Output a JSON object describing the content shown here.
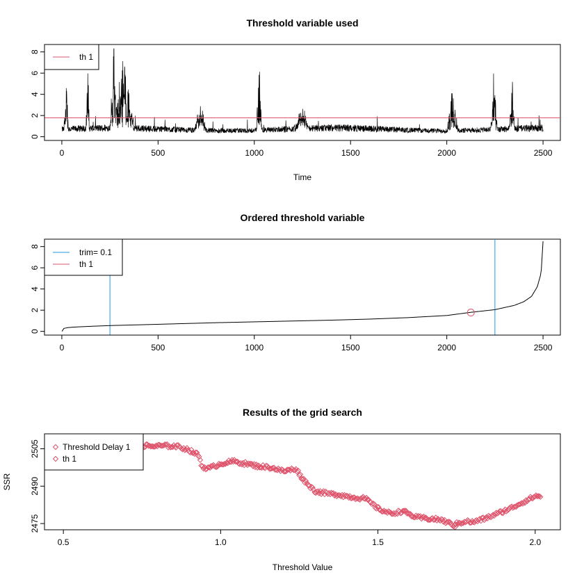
{
  "colors": {
    "black": "#000000",
    "red": "#DF536B",
    "blue": "#2297E6",
    "frame": "#000000"
  },
  "chart_data": [
    {
      "type": "line",
      "title": "Threshold variable used",
      "xlabel": "Time",
      "ylabel": "",
      "xlim": [
        -90,
        2590
      ],
      "ylim": [
        -0.35,
        8.7
      ],
      "xticks": [
        0,
        500,
        1000,
        1500,
        2000,
        2500
      ],
      "yticks": [
        0,
        2,
        4,
        6,
        8
      ],
      "n": 2500,
      "base_level": 1.0,
      "threshold_line": {
        "name": "th 1",
        "y": 1.78
      },
      "bursts": [
        {
          "x": 22,
          "peak": 5.7,
          "width": 12
        },
        {
          "x": 135,
          "peak": 6.4,
          "width": 10
        },
        {
          "x": 270,
          "peak": 8.5,
          "width": 20
        },
        {
          "x": 320,
          "peak": 8.0,
          "width": 55
        },
        {
          "x": 720,
          "peak": 3.1,
          "width": 30
        },
        {
          "x": 1025,
          "peak": 7.4,
          "width": 15
        },
        {
          "x": 1250,
          "peak": 2.6,
          "width": 40
        },
        {
          "x": 2030,
          "peak": 4.6,
          "width": 30
        },
        {
          "x": 2245,
          "peak": 4.7,
          "width": 20
        },
        {
          "x": 2340,
          "peak": 5.1,
          "width": 15
        }
      ],
      "legend": {
        "position": "top-left",
        "entries": [
          {
            "label": "th 1",
            "color": "#DF536B",
            "style": "line"
          }
        ]
      }
    },
    {
      "type": "line",
      "title": "Ordered threshold variable",
      "xlabel": "",
      "ylabel": "",
      "xlim": [
        -90,
        2590
      ],
      "ylim": [
        -0.35,
        8.7
      ],
      "xticks": [
        0,
        500,
        1000,
        1500,
        2000,
        2500
      ],
      "yticks": [
        0,
        2,
        4,
        6,
        8
      ],
      "sorted_curve": {
        "x": [
          1,
          10,
          30,
          60,
          100,
          150,
          250,
          400,
          600,
          800,
          1000,
          1200,
          1400,
          1600,
          1800,
          2000,
          2125,
          2250,
          2350,
          2400,
          2440,
          2470,
          2490,
          2500
        ],
        "y": [
          0.0,
          0.28,
          0.35,
          0.4,
          0.44,
          0.48,
          0.55,
          0.62,
          0.72,
          0.82,
          0.9,
          0.98,
          1.06,
          1.16,
          1.3,
          1.5,
          1.8,
          2.05,
          2.45,
          2.8,
          3.3,
          4.2,
          5.5,
          8.5
        ]
      },
      "trim_lines": {
        "name": "trim= 0.1",
        "x": [
          250,
          2250
        ]
      },
      "threshold_point": {
        "name": "th 1",
        "x": 2125,
        "y": 1.78
      },
      "legend": {
        "position": "top-left",
        "entries": [
          {
            "label": "trim= 0.1",
            "color": "#2297E6",
            "style": "line"
          },
          {
            "label": "th 1",
            "color": "#DF536B",
            "style": "line"
          }
        ]
      }
    },
    {
      "type": "scatter",
      "title": "Results of the grid search",
      "xlabel": "Threshold Value",
      "ylabel": "SSR",
      "xlim": [
        0.44,
        2.08
      ],
      "ylim": [
        2472.5,
        2511
      ],
      "xticks": [
        0.5,
        1.0,
        1.5,
        2.0
      ],
      "xtick_labels": [
        "0.5",
        "1.0",
        "1.5",
        "2.0"
      ],
      "yticks": [
        2475,
        2490,
        2505
      ],
      "ssr_path": {
        "x": [
          0.55,
          0.62,
          0.7,
          0.74,
          0.78,
          0.82,
          0.86,
          0.89,
          0.93,
          0.94,
          0.96,
          1.0,
          1.04,
          1.08,
          1.12,
          1.16,
          1.2,
          1.24,
          1.26,
          1.3,
          1.34,
          1.38,
          1.42,
          1.46,
          1.5,
          1.54,
          1.58,
          1.62,
          1.66,
          1.7,
          1.74,
          1.78,
          1.8,
          1.84,
          1.88,
          1.92,
          1.96,
          2.0,
          2.02
        ],
        "y": [
          2507.5,
          2508.0,
          2507.0,
          2506.5,
          2506.0,
          2506.2,
          2506.0,
          2505.0,
          2502.5,
          2498.0,
          2497.0,
          2499.0,
          2500.0,
          2499.0,
          2498.0,
          2497.5,
          2496.0,
          2497.0,
          2493.0,
          2488.0,
          2487.0,
          2486.5,
          2485.5,
          2485.0,
          2481.0,
          2479.0,
          2480.0,
          2477.5,
          2477.0,
          2476.5,
          2474.5,
          2476.0,
          2475.5,
          2477.0,
          2479.0,
          2481.0,
          2483.5,
          2486.0,
          2486.0
        ]
      },
      "threshold_point": {
        "name": "th 1",
        "x": 1.745,
        "y": 2474.0
      },
      "legend": {
        "position": "top-left",
        "entries": [
          {
            "label": "Threshold Delay 1",
            "color": "#DF536B",
            "style": "point"
          },
          {
            "label": "th 1",
            "color": "#DF536B",
            "style": "point"
          }
        ]
      }
    }
  ]
}
